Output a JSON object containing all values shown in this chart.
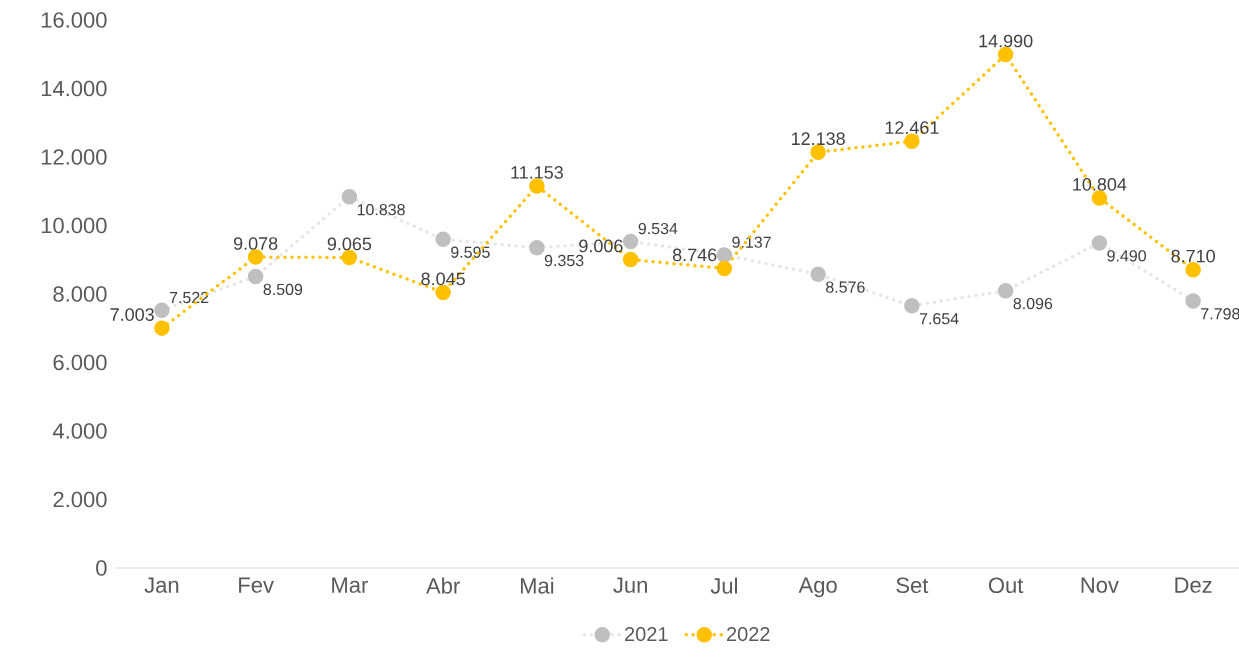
{
  "chart_data": {
    "type": "line",
    "categories": [
      "Jan",
      "Fev",
      "Mar",
      "Abr",
      "Mai",
      "Jun",
      "Jul",
      "Ago",
      "Set",
      "Out",
      "Nov",
      "Dez"
    ],
    "series": [
      {
        "name": "2021",
        "color": "#bfbfbf",
        "values": [
          7522,
          8509,
          10838,
          9595,
          9353,
          9534,
          9137,
          8576,
          7654,
          8096,
          9490,
          7798
        ],
        "value_labels": [
          "7.522",
          "8.509",
          "10.838",
          "9.595",
          "9.353",
          "9.534",
          "9.137",
          "8.576",
          "7.654",
          "8.096",
          "9.490",
          "7.798"
        ]
      },
      {
        "name": "2022",
        "color": "#ffc000",
        "values": [
          7003,
          9078,
          9065,
          8045,
          11153,
          9006,
          8746,
          12138,
          12461,
          14990,
          10804,
          8710
        ],
        "value_labels": [
          "7.003",
          "9.078",
          "9.065",
          "8.045",
          "11.153",
          "9.006",
          "8.746",
          "12.138",
          "12.461",
          "14.990",
          "10.804",
          "8.710"
        ]
      }
    ],
    "ylim": [
      0,
      16000
    ],
    "yticks": [
      0,
      {
        "value": 2000,
        "label": "2.000"
      },
      {
        "value": 4000,
        "label": "4.000"
      },
      {
        "value": 6000,
        "label": "6.000"
      },
      {
        "value": 8000,
        "label": "8.000"
      },
      {
        "value": 10000,
        "label": "10.000"
      },
      {
        "value": 12000,
        "label": "12.000"
      },
      {
        "value": 14000,
        "label": "14.000"
      },
      {
        "value": 16000,
        "label": "16.000"
      }
    ],
    "marker": "circle",
    "line_style": "dotted",
    "grid": false,
    "legend": "bottom"
  }
}
